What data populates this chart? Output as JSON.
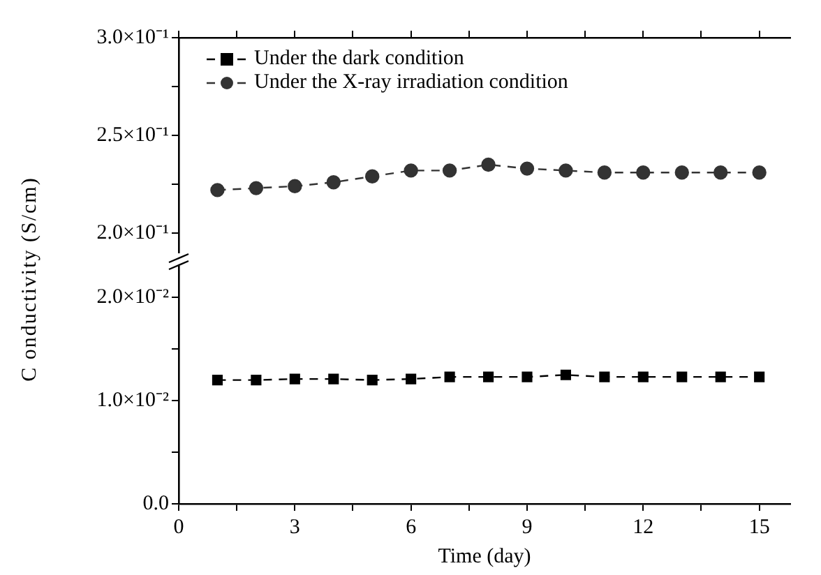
{
  "chart_data": [
    {
      "type": "line",
      "ylabel": "C onductivity (S/cm)",
      "x": [
        1,
        2,
        3,
        4,
        5,
        6,
        7,
        8,
        9,
        10,
        11,
        12,
        13,
        14,
        15
      ],
      "series": [
        {
          "name": "Under the X-ray irradiation condition",
          "color": "#333333",
          "values": [
            0.222,
            0.223,
            0.224,
            0.226,
            0.229,
            0.232,
            0.232,
            0.235,
            0.233,
            0.232,
            0.231,
            0.231,
            0.231,
            0.231,
            0.231
          ]
        }
      ],
      "xlim": [
        0,
        15.8
      ],
      "xticks": [
        {
          "value": 0,
          "label": null
        },
        {
          "value": 1.5,
          "label": null
        },
        {
          "value": 3,
          "label": null
        },
        {
          "value": 4.5,
          "label": null
        },
        {
          "value": 6,
          "label": null
        },
        {
          "value": 7.5,
          "label": null
        },
        {
          "value": 9,
          "label": null
        },
        {
          "value": 10.5,
          "label": null
        },
        {
          "value": 12,
          "label": null
        },
        {
          "value": 13.5,
          "label": null
        },
        {
          "value": 15,
          "label": null
        }
      ],
      "ylim": [
        0.19,
        0.3
      ],
      "yticks": [
        {
          "value": 0.2,
          "label": "2.0×10⁻¹"
        },
        {
          "value": 0.225,
          "label": null
        },
        {
          "value": 0.25,
          "label": "2.5×10⁻¹"
        },
        {
          "value": 0.275,
          "label": null
        },
        {
          "value": 0.3,
          "label": "3.0×10⁻¹"
        }
      ],
      "tick_labels": "y",
      "legend": "top left",
      "marker": "circle",
      "line_style": "dashed",
      "grid": false
    },
    {
      "type": "line",
      "xlabel": "Time (day)",
      "x": [
        1,
        2,
        3,
        4,
        5,
        6,
        7,
        8,
        9,
        10,
        11,
        12,
        13,
        14,
        15
      ],
      "series": [
        {
          "name": "Under the dark condition",
          "color": "#000000",
          "values": [
            0.012,
            0.012,
            0.0121,
            0.0121,
            0.012,
            0.0121,
            0.0123,
            0.0123,
            0.0123,
            0.0125,
            0.0123,
            0.0123,
            0.0123,
            0.0123,
            0.0123
          ]
        }
      ],
      "xlim": [
        0,
        15.8
      ],
      "xticks": [
        0,
        {
          "value": 1.5,
          "label": null
        },
        3,
        {
          "value": 4.5,
          "label": null
        },
        6,
        {
          "value": 7.5,
          "label": null
        },
        9,
        {
          "value": 10.5,
          "label": null
        },
        12,
        {
          "value": 13.5,
          "label": null
        },
        15
      ],
      "ylim": [
        0,
        0.023
      ],
      "yticks": [
        {
          "value": 0,
          "label": "0.0"
        },
        {
          "value": 0.005,
          "label": null
        },
        {
          "value": 0.01,
          "label": "1.0×10⁻²"
        },
        {
          "value": 0.015,
          "label": null
        },
        {
          "value": 0.02,
          "label": "2.0×10⁻²"
        }
      ],
      "legend": "top left",
      "marker": "square",
      "line_style": "dashed",
      "grid": false
    }
  ]
}
